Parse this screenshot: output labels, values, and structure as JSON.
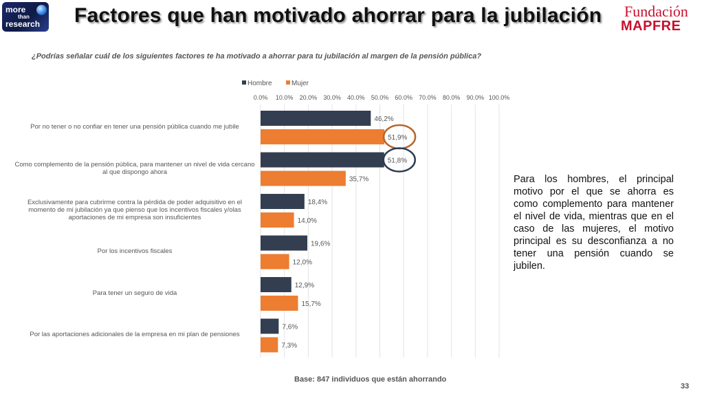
{
  "logo": {
    "line1": "more",
    "line2": "than",
    "line3": "research"
  },
  "title": "Factores que han motivado ahorrar para la jubilación",
  "brand": {
    "line1": "Fundación",
    "line2": "MAPFRE"
  },
  "question": "¿Podrías señalar cuál de los siguientes factores te ha motivado a ahorrar para tu jubilación al margen de la pensión pública?",
  "side_text": "Para los hombres, el principal motivo por el que se ahorra es como complemento para mantener el nivel de vida, mientras que en el caso de las mujeres, el motivo principal es su desconfianza a no tener una pensión cuando se jubilen.",
  "footer": {
    "base": "Base: 847 individuos que están ahorrando",
    "page": "33"
  },
  "chart_data": {
    "type": "bar",
    "orientation": "horizontal",
    "categories": [
      "Por no tener o no confiar en tener una pensión pública cuando me jubile",
      "Como complemento de la pensión pública, para mantener un nivel de vida cercano al que dispongo ahora",
      "Exclusivamente para cubrirme contra la pérdida de poder adquisitivo en el momento de mi jubilación ya que pienso que los incentivos fiscales y/olas aportaciones de mi empresa son insuficientes",
      "Por los incentivos fiscales",
      "Para tener un seguro de vida",
      "Por las aportaciones adicionales de la empresa en mi plan de pensiones"
    ],
    "series": [
      {
        "name": "Hombre",
        "color": "#333f50",
        "values": [
          46.2,
          51.8,
          18.4,
          19.6,
          12.9,
          7.6
        ],
        "labels": [
          "46,2%",
          "51,8%",
          "18,4%",
          "19,6%",
          "12,9%",
          "7,6%"
        ]
      },
      {
        "name": "Mujer",
        "color": "#ed7d31",
        "values": [
          51.9,
          35.7,
          14.0,
          12.0,
          15.7,
          7.3
        ],
        "labels": [
          "51,9%",
          "35,7%",
          "14,0%",
          "12,0%",
          "15,7%",
          "7,3%"
        ]
      }
    ],
    "xlim": [
      0,
      100
    ],
    "xticks": [
      "0.0%",
      "10.0%",
      "20.0%",
      "30.0%",
      "40.0%",
      "50.0%",
      "60.0%",
      "70.0%",
      "80.0%",
      "90.0%",
      "100.0%"
    ],
    "legend_position": "top",
    "grid": true,
    "highlights": [
      {
        "series": "Mujer",
        "category_index": 0,
        "color": "#b5652a"
      },
      {
        "series": "Hombre",
        "category_index": 1,
        "color": "#2f3b52"
      }
    ]
  }
}
